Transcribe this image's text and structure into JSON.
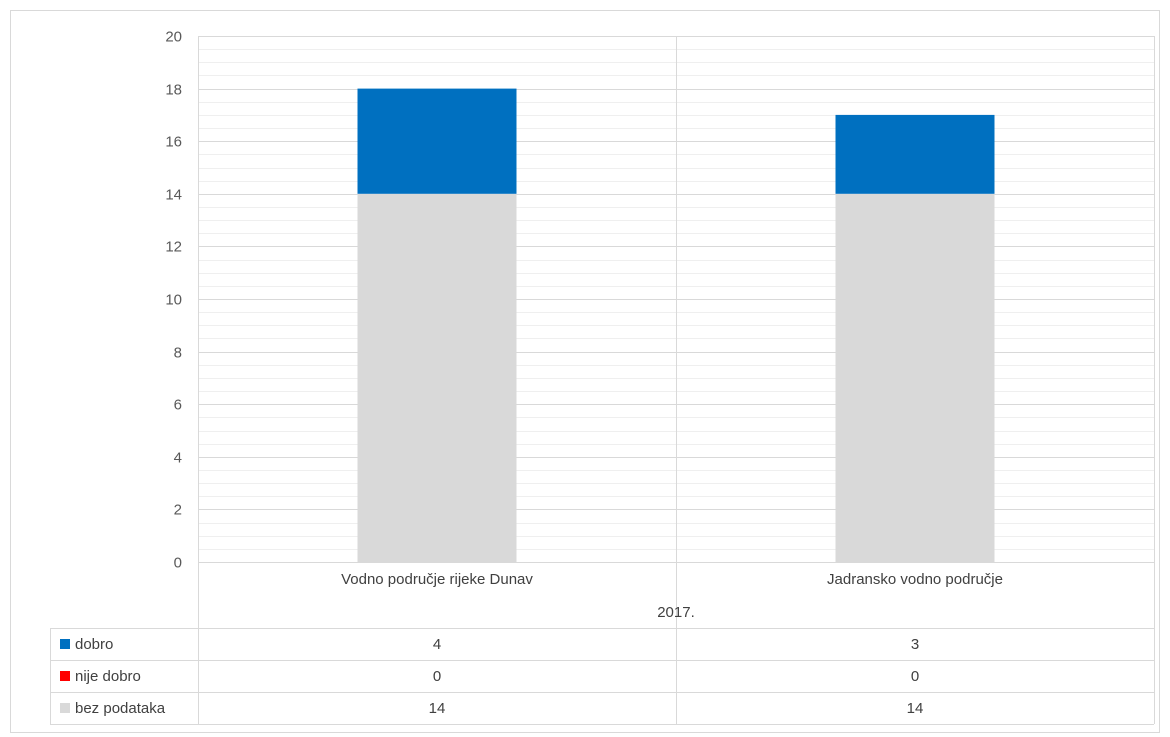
{
  "chart_data": {
    "type": "bar",
    "stacked": true,
    "group_label": "2017.",
    "categories": [
      "Vodno područje rijeke Dunav",
      "Jadransko vodno područje"
    ],
    "series": [
      {
        "name": "dobro",
        "values": [
          4,
          3
        ],
        "color": "#0070C0"
      },
      {
        "name": "nije dobro",
        "values": [
          0,
          0
        ],
        "color": "#FF0000"
      },
      {
        "name": "bez podataka",
        "values": [
          14,
          14
        ],
        "color": "#D9D9D9"
      }
    ],
    "stack_order_bottom_to_top": [
      "bez podataka",
      "nije dobro",
      "dobro"
    ],
    "ylim": [
      0,
      20
    ],
    "yticks": [
      0,
      2,
      4,
      6,
      8,
      10,
      12,
      14,
      16,
      18,
      20
    ],
    "grid": true,
    "legend": "data table below chart"
  }
}
